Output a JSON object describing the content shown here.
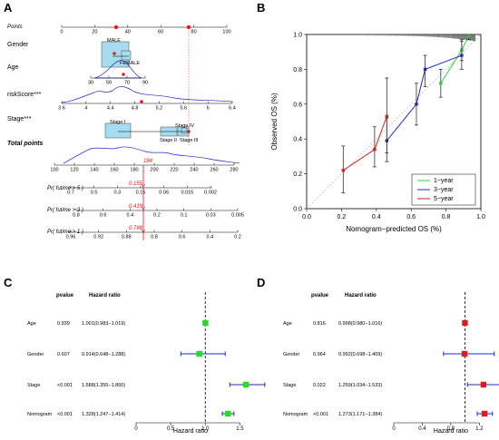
{
  "panel_letters": {
    "a": "A",
    "b": "B",
    "c": "C",
    "d": "D"
  },
  "chart_data": [
    {
      "type": "nomogram",
      "panel": "A",
      "points_label": "Points",
      "points_ticks": [
        "0",
        "20",
        "40",
        "60",
        "80",
        "100"
      ],
      "points_ticks_values": [
        0,
        20,
        40,
        60,
        80,
        100
      ],
      "variables": [
        {
          "name": "Gender",
          "levels": [
            "MALE",
            "FEMALE"
          ]
        },
        {
          "name": "Age",
          "ticks": [
            "30",
            "50",
            "70",
            "90"
          ]
        },
        {
          "name": "riskScore***",
          "ticks": [
            "3.6",
            "4",
            "4.4",
            "4.8",
            "5.2",
            "5.6",
            "6",
            "6.4"
          ]
        },
        {
          "name": "Stage***",
          "levels": [
            "Stage I",
            "Stage II",
            "Stage III",
            "Stage IV"
          ]
        }
      ],
      "total_points_label": "Total points",
      "total_points_ticks": [
        "100",
        "120",
        "140",
        "160",
        "180",
        "200",
        "220",
        "240",
        "260",
        "280"
      ],
      "total_points_value": "184",
      "probability_axes": [
        {
          "label": "Pr( futime > 5 )",
          "ticks": [
            "0.7",
            "0.5",
            "0.3",
            "0.15",
            "0.06",
            "0.015",
            "0.002"
          ],
          "value": "0.155"
        },
        {
          "label": "Pr( futime > 3 )",
          "ticks": [
            "0.8",
            "0.6",
            "0.4",
            "0.2",
            "0.1",
            "0.03",
            "0.005"
          ],
          "value": "0.419"
        },
        {
          "label": "Pr( futime > 1 )",
          "ticks": [
            "0.96",
            "0.92",
            "0.88",
            "0.8",
            "0.6",
            "0.4",
            "0.2"
          ],
          "value": "0.788"
        }
      ]
    },
    {
      "type": "line",
      "panel": "B",
      "xlabel": "Nomogram−predicted OS (%)",
      "ylabel": "Observed OS (%)",
      "xlim": [
        0,
        1
      ],
      "ylim": [
        0,
        1
      ],
      "x_ticks": [
        "0.0",
        "0.2",
        "0.4",
        "0.6",
        "0.8",
        "1.0"
      ],
      "y_ticks": [
        "0.0",
        "0.2",
        "0.4",
        "0.6",
        "0.8",
        "1.0"
      ],
      "legend_position": "bottom-right",
      "series": [
        {
          "name": "1−year",
          "color": "#2ecc40",
          "x": [
            0.77,
            0.89,
            0.93
          ],
          "y": [
            0.72,
            0.91,
            0.99
          ],
          "lo": [
            0.64,
            0.85,
            0.97
          ],
          "hi": [
            0.8,
            0.97,
            1.0
          ]
        },
        {
          "name": "3−year",
          "color": "#1f28c8",
          "x": [
            0.46,
            0.63,
            0.68,
            0.89
          ],
          "y": [
            0.39,
            0.6,
            0.8,
            0.88
          ],
          "lo": [
            0.27,
            0.48,
            0.7,
            0.8
          ],
          "hi": [
            0.52,
            0.72,
            0.88,
            0.96
          ]
        },
        {
          "name": "5−year",
          "color": "#e31a1c",
          "x": [
            0.21,
            0.39,
            0.46
          ],
          "y": [
            0.22,
            0.34,
            0.53
          ],
          "lo": [
            0.09,
            0.24,
            0.32
          ],
          "hi": [
            0.36,
            0.47,
            0.75
          ]
        }
      ]
    },
    {
      "type": "forest",
      "panel": "C",
      "col_pvalue": "pvalue",
      "col_hr": "Hazard ratio",
      "xlabel": "Hazard ratio",
      "xlim": [
        0,
        1.6
      ],
      "x_ticks": [
        "0",
        "0.5",
        "1.0",
        "1.5"
      ],
      "x_tick_values": [
        0,
        0.5,
        1.0,
        1.5
      ],
      "color": "#22dd22",
      "rows": [
        {
          "name": "Age",
          "pvalue": "0.939",
          "hr_text": "1.001(0.983−1.019)",
          "hr": 1.001,
          "lo": 0.983,
          "hi": 1.019
        },
        {
          "name": "Gender",
          "pvalue": "0.607",
          "hr_text": "0.914(0.648−1.288)",
          "hr": 0.914,
          "lo": 0.648,
          "hi": 1.288
        },
        {
          "name": "Stage",
          "pvalue": "<0.001",
          "hr_text": "1.588(1.355−1.860)",
          "hr": 1.588,
          "lo": 1.355,
          "hi": 1.86
        },
        {
          "name": "Nomogram",
          "pvalue": "<0.001",
          "hr_text": "1.328(1.247−1.414)",
          "hr": 1.328,
          "lo": 1.247,
          "hi": 1.414
        }
      ]
    },
    {
      "type": "forest",
      "panel": "D",
      "col_pvalue": "pvalue",
      "col_hr": "Hazard ratio",
      "xlabel": "Hazard ratio",
      "xlim": [
        0,
        1.4
      ],
      "x_ticks": [
        "0",
        "0.4",
        "0.8",
        "1.2"
      ],
      "x_tick_values": [
        0,
        0.4,
        0.8,
        1.2
      ],
      "color": "#e31a1c",
      "rows": [
        {
          "name": "Age",
          "pvalue": "0.816",
          "hr_text": "0.998(0.980−1.016)",
          "hr": 0.998,
          "lo": 0.98,
          "hi": 1.016
        },
        {
          "name": "Gender",
          "pvalue": "0.964",
          "hr_text": "0.992(0.698−1.409)",
          "hr": 0.992,
          "lo": 0.698,
          "hi": 1.409
        },
        {
          "name": "Stage",
          "pvalue": "0.022",
          "hr_text": "1.259(1.034−1.533)",
          "hr": 1.259,
          "lo": 1.034,
          "hi": 1.533
        },
        {
          "name": "Nomogram",
          "pvalue": "<0.001",
          "hr_text": "1.273(1.171−1.384)",
          "hr": 1.273,
          "lo": 1.171,
          "hi": 1.384
        }
      ]
    }
  ]
}
